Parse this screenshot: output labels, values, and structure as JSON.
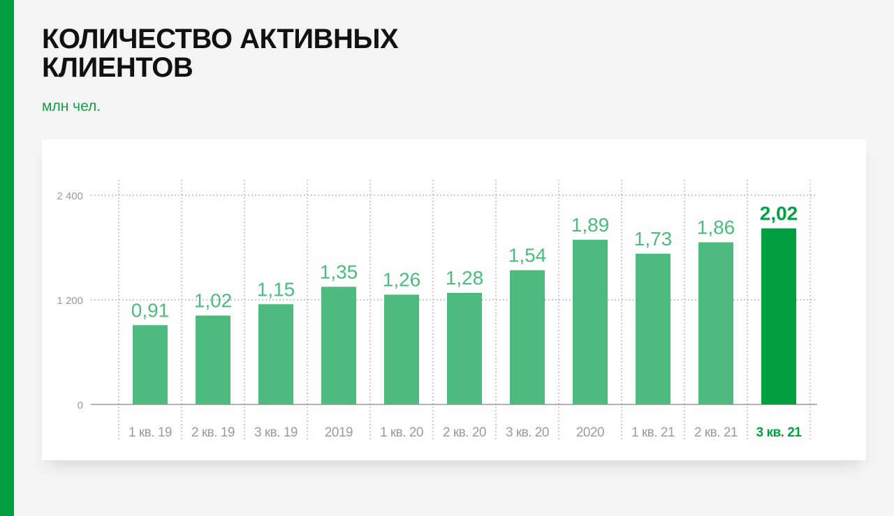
{
  "title": "КОЛИЧЕСТВО АКТИВНЫХ КЛИЕНТОВ",
  "unit": "млн чел.",
  "colors": {
    "accent": "#00a040",
    "bar": "#4dbb7d",
    "bar_highlight": "#00a040",
    "value_label": "#4dbb7d",
    "value_label_highlight": "#00a040",
    "tick_label": "#9a9a9a",
    "grid": "#aaaaaa"
  },
  "chart_data": {
    "type": "bar",
    "categories": [
      "1 кв. 19",
      "2 кв. 19",
      "3 кв. 19",
      "2019",
      "1 кв. 20",
      "2 кв. 20",
      "3 кв. 20",
      "2020",
      "1 кв. 21",
      "2 кв. 21",
      "3 кв. 21"
    ],
    "values": [
      0.91,
      1.02,
      1.15,
      1.35,
      1.26,
      1.28,
      1.54,
      1.89,
      1.73,
      1.86,
      2.02
    ],
    "value_labels": [
      "0,91",
      "1,02",
      "1,15",
      "1,35",
      "1,26",
      "1,28",
      "1,54",
      "1,89",
      "1,73",
      "1,86",
      "2,02"
    ],
    "highlight_index": 10,
    "yticks": [
      0,
      1.2,
      2.4
    ],
    "ytick_labels": [
      "0",
      "1 200",
      "2 400"
    ],
    "ylim": [
      0,
      2.4
    ],
    "grid": true,
    "xlabel": "",
    "ylabel": ""
  }
}
